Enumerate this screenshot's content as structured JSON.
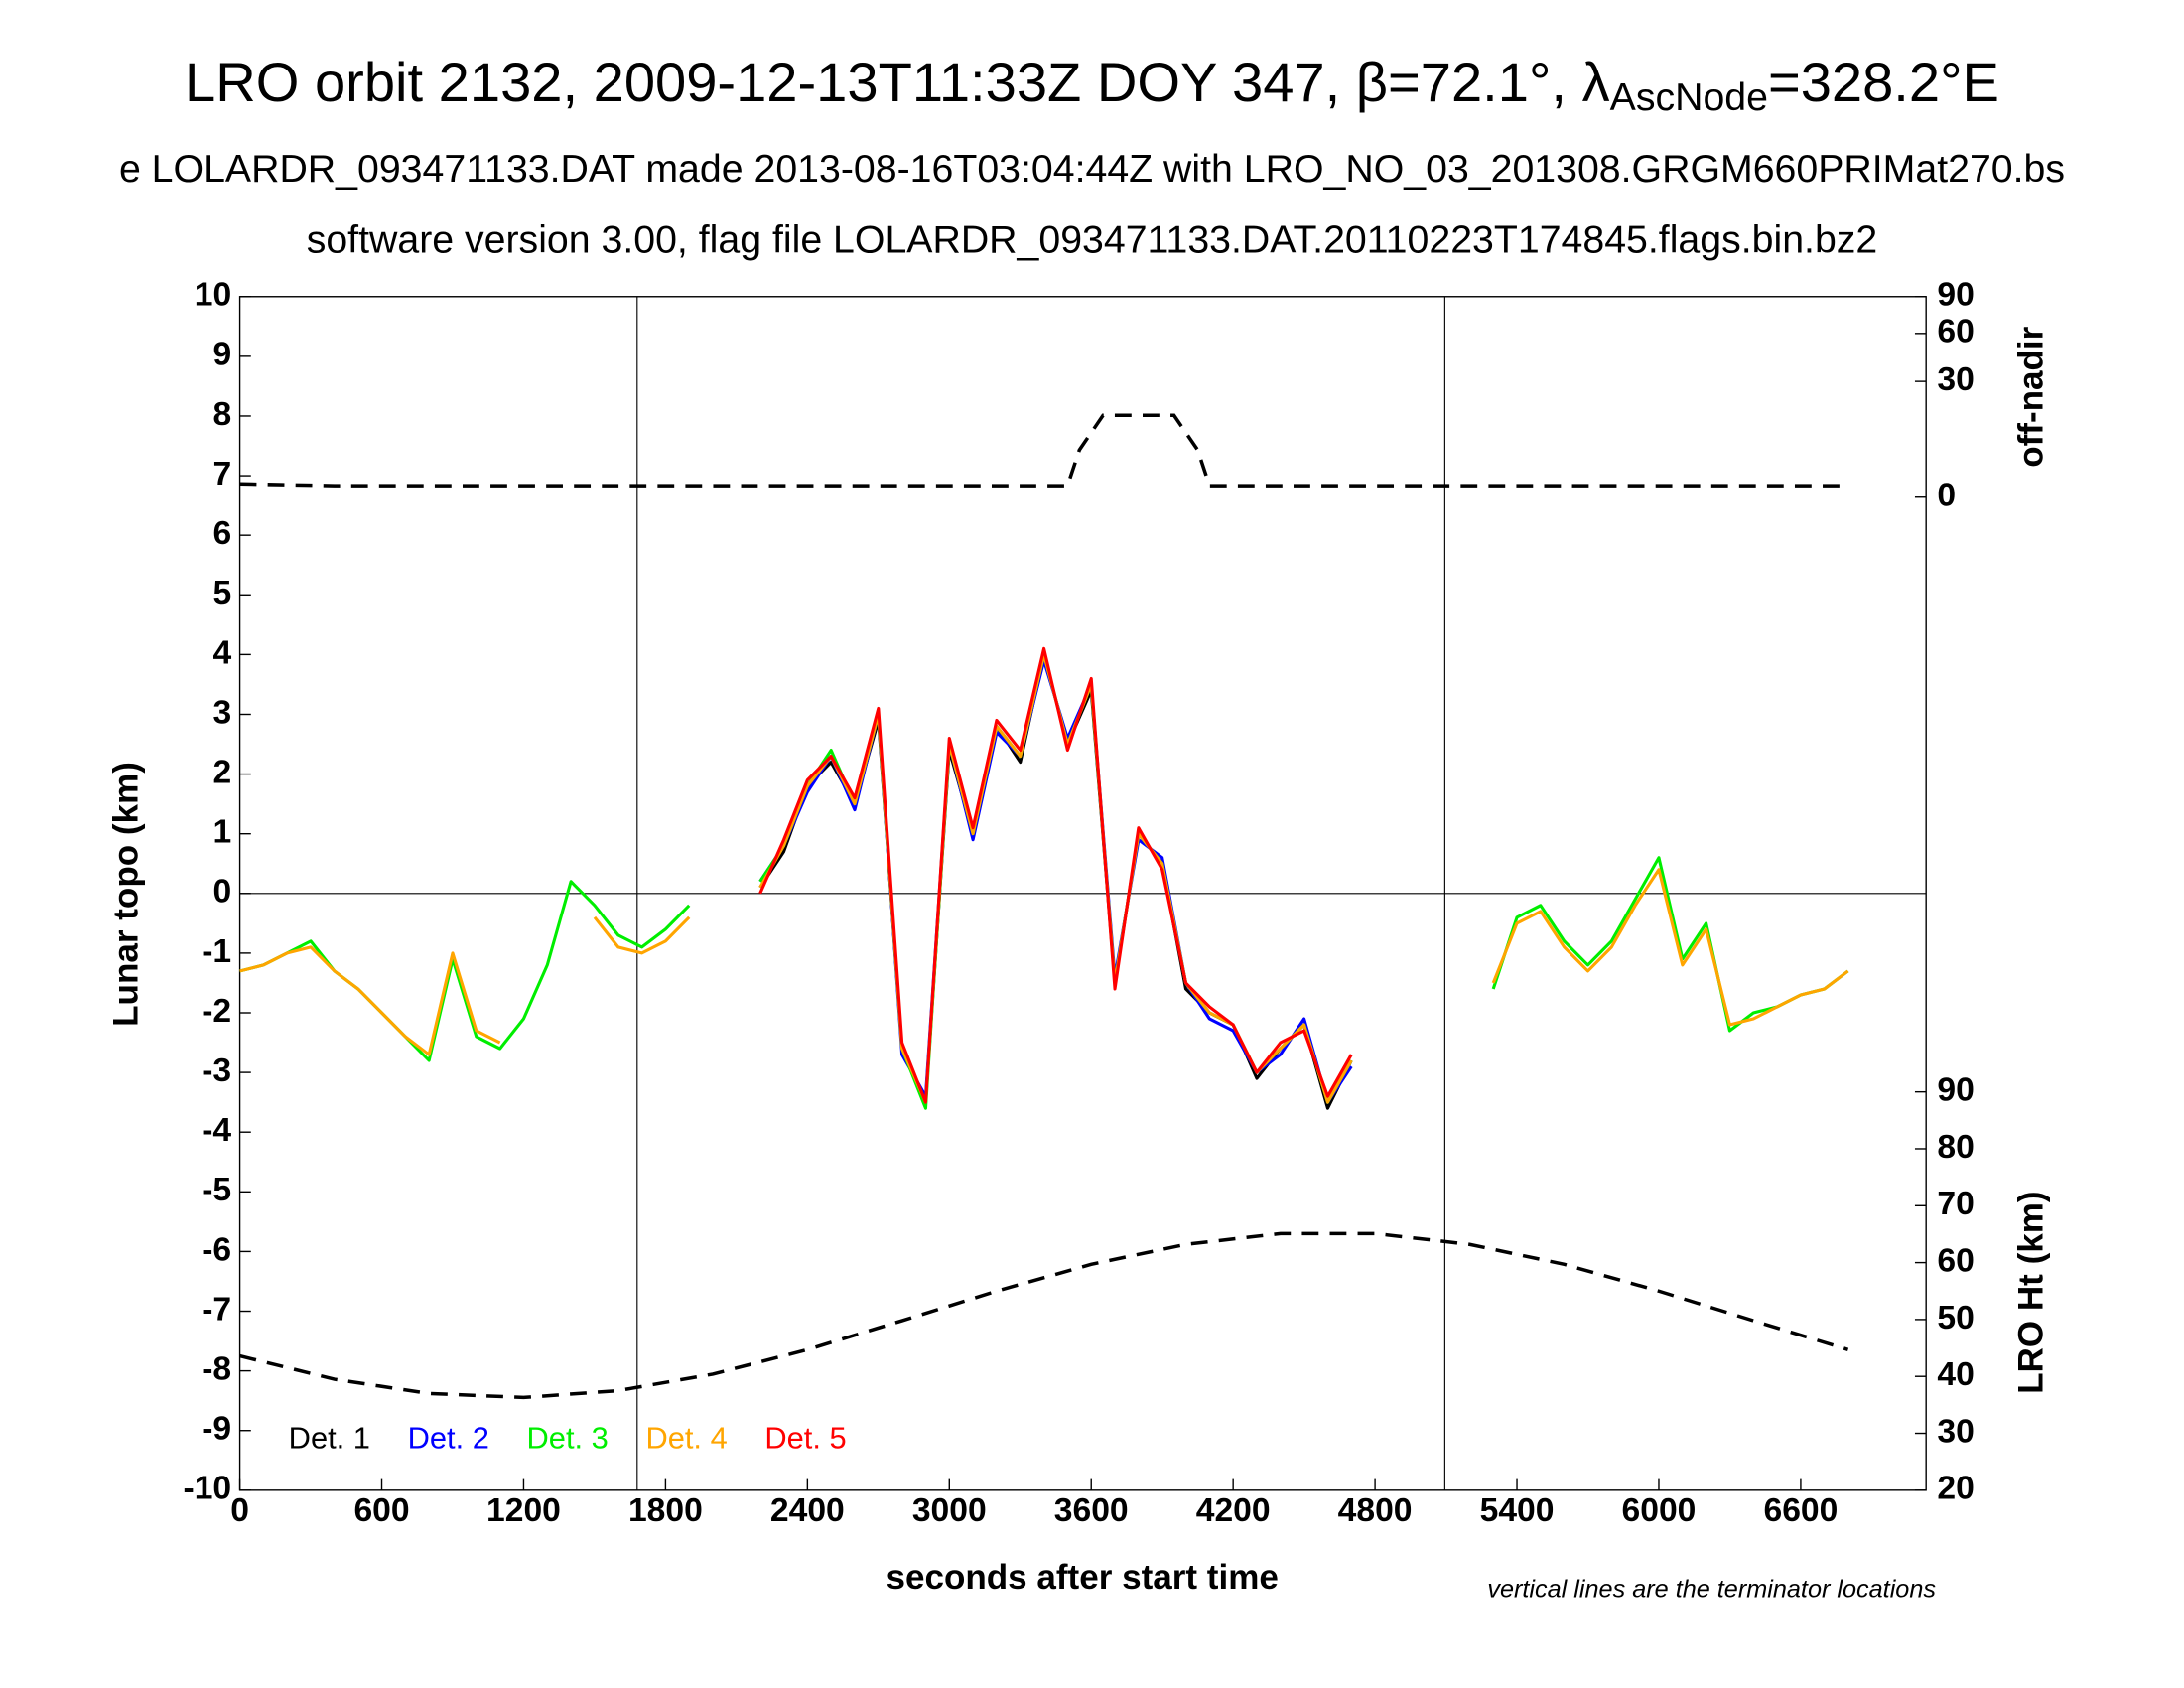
{
  "chart_data": {
    "type": "line",
    "title_parts": [
      "LRO orbit 2132, 2009-12-13T11:33Z DOY 347, β=72.1°, λ",
      "AscNode",
      "=328.2°E"
    ],
    "subtitle_lines": [
      "e LOLARDR_093471133.DAT made 2013-08-16T03:04:44Z with LRO_NO_03_201308.GRGM660PRIMat270.bs",
      "software version 3.00, flag file LOLARDR_093471133.DAT.20110223T174845.flags.bin.bz2"
    ],
    "xlabel": "seconds after start time",
    "ylabel": "Lunar topo (km)",
    "annotation": "vertical lines are the terminator locations",
    "xlim": [
      0,
      7130
    ],
    "xticks": [
      0,
      600,
      1200,
      1800,
      2400,
      3000,
      3600,
      4200,
      4800,
      5400,
      6000,
      6600
    ],
    "ylim": [
      -10,
      10
    ],
    "yticks": [
      -10,
      -9,
      -8,
      -7,
      -6,
      -5,
      -4,
      -3,
      -2,
      -1,
      0,
      1,
      2,
      3,
      4,
      5,
      6,
      7,
      8,
      9,
      10
    ],
    "zero_line": true,
    "terminators": [
      1680,
      5095
    ],
    "x": [
      0,
      100,
      200,
      300,
      400,
      500,
      600,
      700,
      800,
      900,
      1000,
      1100,
      1200,
      1300,
      1400,
      1500,
      1600,
      1700,
      1800,
      1900,
      2000,
      2100,
      2200,
      2300,
      2400,
      2500,
      2600,
      2700,
      2800,
      2900,
      3000,
      3100,
      3200,
      3300,
      3400,
      3500,
      3600,
      3700,
      3800,
      3900,
      4000,
      4100,
      4200,
      4300,
      4400,
      4500,
      4600,
      4700,
      4800,
      4900,
      5000,
      5100,
      5200,
      5300,
      5400,
      5500,
      5600,
      5700,
      5800,
      5900,
      6000,
      6100,
      6200,
      6300,
      6400,
      6500,
      6600,
      6700,
      6800
    ],
    "series": [
      {
        "name": "Det. 1",
        "color": "#000000",
        "values": [
          null,
          null,
          null,
          null,
          null,
          null,
          null,
          null,
          null,
          null,
          null,
          null,
          null,
          null,
          null,
          null,
          null,
          null,
          null,
          null,
          null,
          null,
          0.1,
          0.7,
          1.8,
          2.2,
          1.5,
          2.9,
          -2.6,
          -3.5,
          2.4,
          1.0,
          2.8,
          2.2,
          4.0,
          2.5,
          3.4,
          -1.5,
          1.0,
          0.5,
          -1.6,
          -2.0,
          -2.2,
          -3.1,
          -2.6,
          -2.2,
          -3.6,
          -2.8,
          null,
          null,
          null,
          null,
          null,
          null,
          null,
          null,
          null,
          null,
          null,
          null,
          null,
          null,
          null,
          null,
          null,
          null,
          null,
          null,
          null
        ]
      },
      {
        "name": "Det. 2",
        "color": "#0000ff",
        "values": [
          null,
          null,
          null,
          null,
          null,
          null,
          null,
          null,
          null,
          null,
          null,
          null,
          null,
          null,
          null,
          null,
          null,
          null,
          null,
          null,
          null,
          null,
          0.2,
          0.8,
          1.7,
          2.3,
          1.4,
          3.0,
          -2.7,
          -3.4,
          2.5,
          0.9,
          2.7,
          2.3,
          3.9,
          2.6,
          3.5,
          -1.4,
          0.9,
          0.6,
          -1.5,
          -2.1,
          -2.3,
          -3.0,
          -2.7,
          -2.1,
          -3.5,
          -2.9,
          null,
          null,
          null,
          null,
          null,
          null,
          null,
          null,
          null,
          null,
          null,
          null,
          null,
          null,
          null,
          null,
          null,
          null,
          null,
          null,
          null
        ]
      },
      {
        "name": "Det. 3",
        "color": "#00ee00",
        "values": [
          -1.3,
          -1.2,
          -1.0,
          -0.8,
          -1.3,
          -1.6,
          -2.0,
          -2.4,
          -2.8,
          -1.1,
          -2.4,
          -2.6,
          -2.1,
          -1.2,
          0.2,
          -0.2,
          -0.7,
          -0.9,
          -0.6,
          -0.2,
          null,
          null,
          0.2,
          0.8,
          1.8,
          2.4,
          1.5,
          3.0,
          -2.6,
          -3.6,
          2.5,
          1.0,
          2.8,
          2.3,
          4.0,
          2.5,
          3.5,
          -1.5,
          1.0,
          0.5,
          -1.5,
          -2.0,
          -2.2,
          -3.0,
          -2.6,
          -2.2,
          -3.5,
          -2.8,
          null,
          null,
          null,
          null,
          null,
          -1.6,
          -0.4,
          -0.2,
          -0.8,
          -1.2,
          -0.8,
          -0.1,
          0.6,
          -1.1,
          -0.5,
          -2.3,
          -2.0,
          -1.9,
          -1.7,
          -1.6,
          -1.3
        ]
      },
      {
        "name": "Det. 4",
        "color": "#ffa500",
        "values": [
          -1.3,
          -1.2,
          -1.0,
          -0.9,
          -1.3,
          -1.6,
          -2.0,
          -2.4,
          -2.7,
          -1.0,
          -2.3,
          -2.5,
          null,
          null,
          null,
          -0.4,
          -0.9,
          -1.0,
          -0.8,
          -0.4,
          null,
          null,
          0.1,
          0.8,
          1.8,
          2.3,
          1.5,
          3.0,
          -2.6,
          -3.5,
          2.5,
          1.0,
          2.8,
          2.3,
          4.0,
          2.5,
          3.5,
          -1.5,
          1.0,
          0.5,
          -1.5,
          -2.0,
          -2.2,
          -3.0,
          -2.6,
          -2.2,
          -3.5,
          -2.8,
          null,
          null,
          null,
          null,
          null,
          -1.5,
          -0.5,
          -0.3,
          -0.9,
          -1.3,
          -0.9,
          -0.2,
          0.4,
          -1.2,
          -0.6,
          -2.2,
          -2.1,
          -1.9,
          -1.7,
          -1.6,
          -1.3
        ]
      },
      {
        "name": "Det. 5",
        "color": "#ff0000",
        "values": [
          null,
          null,
          null,
          null,
          null,
          null,
          null,
          null,
          null,
          null,
          null,
          null,
          null,
          null,
          null,
          null,
          null,
          null,
          null,
          null,
          null,
          null,
          0.0,
          0.9,
          1.9,
          2.3,
          1.6,
          3.1,
          -2.5,
          -3.5,
          2.6,
          1.1,
          2.9,
          2.4,
          4.1,
          2.4,
          3.6,
          -1.6,
          1.1,
          0.4,
          -1.5,
          -1.9,
          -2.2,
          -3.0,
          -2.5,
          -2.3,
          -3.4,
          -2.7,
          null,
          null,
          null,
          null,
          null,
          null,
          null,
          null,
          null,
          null,
          null,
          null,
          null,
          null,
          null,
          null,
          null,
          null,
          null,
          null,
          null
        ]
      }
    ],
    "offnadir": {
      "label": "off-nadir",
      "lim": [
        0,
        90
      ],
      "ticks": [
        0,
        30,
        60,
        90
      ],
      "scale": "sqrt",
      "color": "#000000",
      "x": [
        0,
        400,
        3500,
        3550,
        3650,
        3950,
        4050,
        4100,
        6800
      ],
      "values": [
        0.4,
        0.3,
        0.3,
        5,
        15,
        15,
        5,
        0.3,
        0.3
      ]
    },
    "height": {
      "label": "LRO Ht (km)",
      "lim": [
        20,
        90
      ],
      "ticks": [
        20,
        30,
        40,
        50,
        60,
        70,
        80,
        90
      ],
      "color": "#000000",
      "x": [
        0,
        400,
        800,
        1200,
        1600,
        2000,
        2400,
        2800,
        3200,
        3600,
        4000,
        4400,
        4800,
        5200,
        5600,
        6000,
        6400,
        6800
      ],
      "values": [
        43.6,
        39.5,
        37.0,
        36.3,
        37.5,
        40.4,
        44.7,
        49.8,
        55.0,
        59.7,
        63.2,
        65.1,
        65.1,
        63.2,
        59.7,
        55.0,
        49.8,
        44.7
      ]
    }
  }
}
